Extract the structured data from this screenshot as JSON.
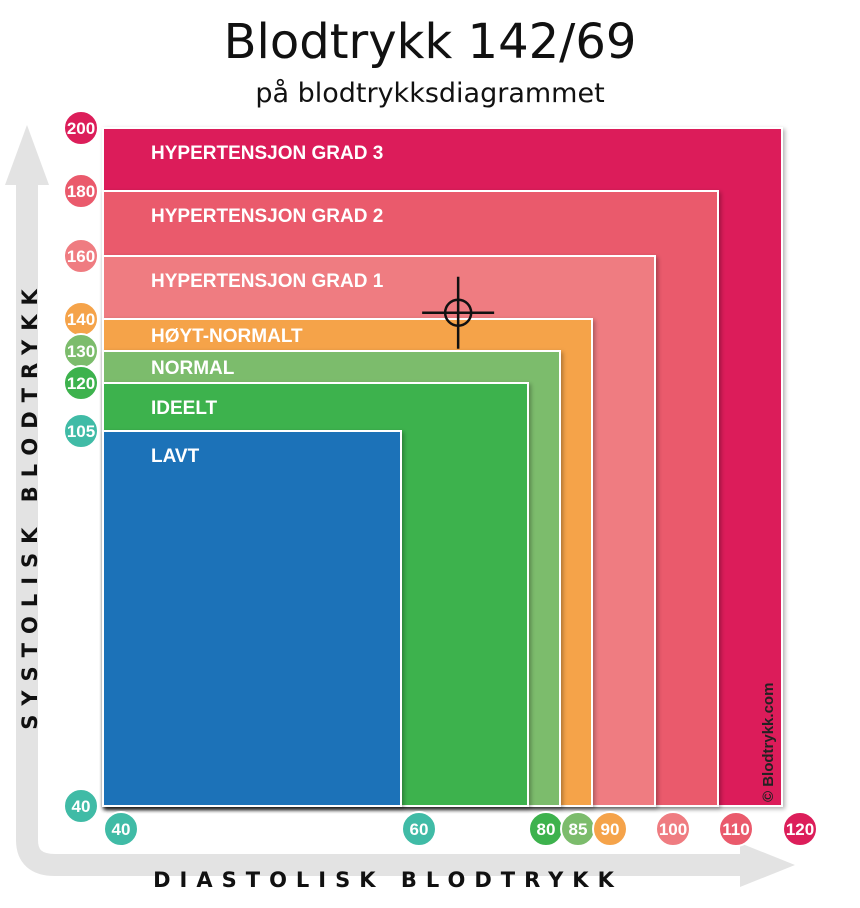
{
  "title": "Blodtrykk 142/69",
  "subtitle": "på blodtrykksdiagrammet",
  "chart_data": {
    "type": "area",
    "title": "Blodtrykk 142/69",
    "subtitle": "på blodtrykksdiagrammet",
    "xlabel": "DIASTOLISK BLODTRYKK",
    "ylabel": "SYSTOLISK BLODTRYKK",
    "xlim": [
      40,
      120
    ],
    "ylim": [
      40,
      200
    ],
    "zones": [
      {
        "name": "HYPERTENSJON GRAD 3",
        "x_max": 120,
        "y_max": 200,
        "color": "#dc1e5a"
      },
      {
        "name": "HYPERTENSJON GRAD 2",
        "x_max": 110,
        "y_max": 180,
        "color": "#ea5a6c"
      },
      {
        "name": "HYPERTENSJON GRAD 1",
        "x_max": 100,
        "y_max": 160,
        "color": "#ef7c81"
      },
      {
        "name": "HØYT-NORMALT",
        "x_max": 90,
        "y_max": 140,
        "color": "#f5a34a"
      },
      {
        "name": "NORMAL",
        "x_max": 85,
        "y_max": 130,
        "color": "#7cbc6c"
      },
      {
        "name": "IDEELT",
        "x_max": 80,
        "y_max": 120,
        "color": "#3db24d"
      },
      {
        "name": "LAVT",
        "x_max": 60,
        "y_max": 105,
        "color": "#1a72b8"
      }
    ],
    "y_ticks": [
      {
        "label": "200",
        "value": 200,
        "color": "#dc1e5a"
      },
      {
        "label": "180",
        "value": 180,
        "color": "#ea5a6c"
      },
      {
        "label": "160",
        "value": 160,
        "color": "#ef7c81"
      },
      {
        "label": "140",
        "value": 140,
        "color": "#f5a34a"
      },
      {
        "label": "130",
        "value": 130,
        "color": "#7cbc6c"
      },
      {
        "label": "120",
        "value": 120,
        "color": "#3db24d"
      },
      {
        "label": "105",
        "value": 105,
        "color": "#40bba6"
      },
      {
        "label": "40",
        "value": 40,
        "color": "#40bba6"
      }
    ],
    "x_ticks": [
      {
        "label": "40",
        "value": 40,
        "color": "#40bba6"
      },
      {
        "label": "60",
        "value": 60,
        "color": "#40bba6"
      },
      {
        "label": "80",
        "value": 80,
        "color": "#3db24d"
      },
      {
        "label": "85",
        "value": 85,
        "color": "#7cbc6c"
      },
      {
        "label": "90",
        "value": 90,
        "color": "#f5a34a"
      },
      {
        "label": "100",
        "value": 100,
        "color": "#ef7c81"
      },
      {
        "label": "110",
        "value": 110,
        "color": "#ea5a6c"
      },
      {
        "label": "120",
        "value": 120,
        "color": "#dc1e5a"
      }
    ],
    "marker": {
      "systolic": 142,
      "diastolic": 69
    },
    "credit": "© Blodtrykk.com"
  }
}
